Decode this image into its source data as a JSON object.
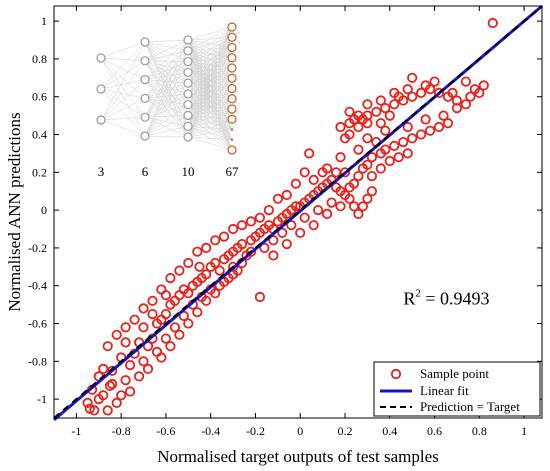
{
  "chart_data": {
    "type": "scatter",
    "xlabel": "Normalised target outputs of test samples",
    "ylabel": "Normalised ANN predictions",
    "xlim": [
      -1.1,
      1.08
    ],
    "ylim": [
      -1.1,
      1.08
    ],
    "xticks": [
      "-1",
      "-0.8",
      "-0.6",
      "-0.4",
      "-0.2",
      "0",
      "0.2",
      "0.4",
      "0.6",
      "0.8",
      "1"
    ],
    "yticks": [
      "-1",
      "-0.8",
      "-0.6",
      "-0.4",
      "-0.2",
      "0",
      "0.2",
      "0.4",
      "0.6",
      "0.8",
      "1"
    ],
    "grid": false,
    "legend_position": "bottom-right",
    "annotation": {
      "r2_base": "R",
      "r2_sup": "2",
      "r2_value": " = 0.9493",
      "r2_at": [
        0.55,
        -0.5
      ]
    },
    "series": [
      {
        "name": "Sample point",
        "kind": "scatter",
        "color": "#e8211b",
        "points": [
          [
            -0.94,
            -1.05
          ],
          [
            -0.92,
            -1.06
          ],
          [
            -0.95,
            -1.02
          ],
          [
            -0.9,
            -1.0
          ],
          [
            -0.88,
            -0.98
          ],
          [
            -0.86,
            -1.06
          ],
          [
            -0.93,
            -0.95
          ],
          [
            -0.85,
            -0.93
          ],
          [
            -0.82,
            -1.02
          ],
          [
            -0.8,
            -0.98
          ],
          [
            -0.84,
            -0.85
          ],
          [
            -0.78,
            -0.9
          ],
          [
            -0.8,
            -0.78
          ],
          [
            -0.76,
            -0.82
          ],
          [
            -0.74,
            -0.76
          ],
          [
            -0.72,
            -0.7
          ],
          [
            -0.78,
            -0.7
          ],
          [
            -0.7,
            -0.8
          ],
          [
            -0.68,
            -0.72
          ],
          [
            -0.66,
            -0.68
          ],
          [
            -0.7,
            -0.62
          ],
          [
            -0.64,
            -0.6
          ],
          [
            -0.62,
            -0.58
          ],
          [
            -0.66,
            -0.55
          ],
          [
            -0.6,
            -0.55
          ],
          [
            -0.58,
            -0.5
          ],
          [
            -0.6,
            -0.45
          ],
          [
            -0.56,
            -0.48
          ],
          [
            -0.54,
            -0.45
          ],
          [
            -0.52,
            -0.42
          ],
          [
            -0.5,
            -0.44
          ],
          [
            -0.48,
            -0.4
          ],
          [
            -0.46,
            -0.38
          ],
          [
            -0.44,
            -0.36
          ],
          [
            -0.42,
            -0.34
          ],
          [
            -0.45,
            -0.3
          ],
          [
            -0.4,
            -0.3
          ],
          [
            -0.38,
            -0.28
          ],
          [
            -0.36,
            -0.32
          ],
          [
            -0.34,
            -0.26
          ],
          [
            -0.32,
            -0.24
          ],
          [
            -0.3,
            -0.22
          ],
          [
            -0.3,
            -0.3
          ],
          [
            -0.28,
            -0.2
          ],
          [
            -0.26,
            -0.18
          ],
          [
            -0.24,
            -0.24
          ],
          [
            -0.22,
            -0.16
          ],
          [
            -0.2,
            -0.14
          ],
          [
            -0.18,
            -0.12
          ],
          [
            -0.16,
            -0.1
          ],
          [
            -0.14,
            -0.08
          ],
          [
            -0.12,
            -0.1
          ],
          [
            -0.1,
            -0.06
          ],
          [
            -0.08,
            -0.04
          ],
          [
            -0.06,
            -0.02
          ],
          [
            -0.04,
            0.0
          ],
          [
            -0.02,
            0.02
          ],
          [
            0.0,
            0.02
          ],
          [
            0.02,
            0.04
          ],
          [
            0.04,
            0.06
          ],
          [
            0.06,
            0.08
          ],
          [
            0.08,
            0.1
          ],
          [
            0.1,
            0.12
          ],
          [
            0.12,
            0.14
          ],
          [
            0.14,
            0.16
          ],
          [
            0.16,
            0.12
          ],
          [
            0.18,
            0.1
          ],
          [
            0.2,
            0.08
          ],
          [
            0.22,
            0.06
          ],
          [
            0.24,
            0.02
          ],
          [
            0.26,
            -0.02
          ],
          [
            0.28,
            0.02
          ],
          [
            0.3,
            0.06
          ],
          [
            0.32,
            0.1
          ],
          [
            0.18,
            0.28
          ],
          [
            0.2,
            0.38
          ],
          [
            0.22,
            0.46
          ],
          [
            0.24,
            0.48
          ],
          [
            0.26,
            0.5
          ],
          [
            0.28,
            0.48
          ],
          [
            0.3,
            0.5
          ],
          [
            0.34,
            0.52
          ],
          [
            0.38,
            0.54
          ],
          [
            0.42,
            0.56
          ],
          [
            0.46,
            0.58
          ],
          [
            0.5,
            0.6
          ],
          [
            0.54,
            0.62
          ],
          [
            0.58,
            0.64
          ],
          [
            0.62,
            0.62
          ],
          [
            0.66,
            0.6
          ],
          [
            0.7,
            0.58
          ],
          [
            0.74,
            0.56
          ],
          [
            0.78,
            0.64
          ],
          [
            0.82,
            0.66
          ],
          [
            0.86,
            0.99
          ],
          [
            0.74,
            0.68
          ],
          [
            0.5,
            0.7
          ],
          [
            0.44,
            0.6
          ],
          [
            0.4,
            0.5
          ],
          [
            0.36,
            0.46
          ],
          [
            0.34,
            0.36
          ],
          [
            0.36,
            0.3
          ],
          [
            0.38,
            0.32
          ],
          [
            0.42,
            0.34
          ],
          [
            0.46,
            0.36
          ],
          [
            0.5,
            0.38
          ],
          [
            0.54,
            0.4
          ],
          [
            0.58,
            0.42
          ],
          [
            0.62,
            0.44
          ],
          [
            0.66,
            0.46
          ],
          [
            0.24,
            0.14
          ],
          [
            0.26,
            0.18
          ],
          [
            0.28,
            0.22
          ],
          [
            0.3,
            0.24
          ],
          [
            0.32,
            0.28
          ],
          [
            0.2,
            0.2
          ],
          [
            0.16,
            0.2
          ],
          [
            0.04,
            0.3
          ],
          [
            0.02,
            0.2
          ],
          [
            0.06,
            0.16
          ],
          [
            0.1,
            0.2
          ],
          [
            0.12,
            0.22
          ],
          [
            -0.02,
            0.14
          ],
          [
            -0.06,
            0.08
          ],
          [
            -0.1,
            0.06
          ],
          [
            -0.14,
            0.0
          ],
          [
            -0.18,
            -0.04
          ],
          [
            -0.22,
            -0.06
          ],
          [
            -0.26,
            -0.08
          ],
          [
            -0.3,
            -0.1
          ],
          [
            -0.34,
            -0.14
          ],
          [
            -0.38,
            -0.16
          ],
          [
            -0.42,
            -0.2
          ],
          [
            -0.46,
            -0.22
          ],
          [
            -0.5,
            -0.28
          ],
          [
            -0.54,
            -0.32
          ],
          [
            -0.58,
            -0.36
          ],
          [
            -0.62,
            -0.42
          ],
          [
            -0.66,
            -0.48
          ],
          [
            -0.7,
            -0.52
          ],
          [
            -0.74,
            -0.58
          ],
          [
            -0.78,
            -0.62
          ],
          [
            -0.82,
            -0.66
          ],
          [
            -0.86,
            -0.72
          ],
          [
            -0.64,
            -0.75
          ],
          [
            -0.6,
            -0.68
          ],
          [
            -0.56,
            -0.62
          ],
          [
            -0.52,
            -0.56
          ],
          [
            -0.48,
            -0.5
          ],
          [
            -0.44,
            -0.46
          ],
          [
            -0.4,
            -0.42
          ],
          [
            -0.36,
            -0.4
          ],
          [
            -0.32,
            -0.36
          ],
          [
            -0.28,
            -0.32
          ],
          [
            -0.18,
            -0.46
          ],
          [
            -0.12,
            -0.24
          ],
          [
            -0.06,
            -0.18
          ],
          [
            0.0,
            -0.12
          ],
          [
            0.06,
            -0.08
          ],
          [
            0.12,
            -0.02
          ],
          [
            0.18,
            0.02
          ],
          [
            0.22,
            0.12
          ],
          [
            0.26,
            0.32
          ],
          [
            0.3,
            0.38
          ],
          [
            0.38,
            0.42
          ],
          [
            0.48,
            0.44
          ],
          [
            0.56,
            0.48
          ],
          [
            0.64,
            0.5
          ],
          [
            0.7,
            0.54
          ],
          [
            0.76,
            0.6
          ],
          [
            0.8,
            0.62
          ],
          [
            0.32,
            0.18
          ],
          [
            0.36,
            0.22
          ],
          [
            0.4,
            0.26
          ],
          [
            0.44,
            0.28
          ],
          [
            0.48,
            0.3
          ],
          [
            -0.72,
            -0.88
          ],
          [
            -0.76,
            -0.96
          ],
          [
            -0.84,
            -0.92
          ],
          [
            -0.88,
            -0.84
          ],
          [
            -0.9,
            -0.88
          ],
          [
            -0.68,
            -0.84
          ],
          [
            -0.62,
            -0.78
          ],
          [
            -0.58,
            -0.72
          ],
          [
            -0.54,
            -0.66
          ],
          [
            -0.5,
            -0.6
          ],
          [
            -0.46,
            -0.54
          ],
          [
            -0.42,
            -0.48
          ],
          [
            -0.38,
            -0.44
          ],
          [
            -0.34,
            -0.38
          ],
          [
            -0.3,
            -0.34
          ],
          [
            -0.26,
            -0.28
          ],
          [
            -0.22,
            -0.22
          ],
          [
            -0.16,
            -0.2
          ],
          [
            -0.12,
            -0.16
          ],
          [
            -0.08,
            -0.12
          ],
          [
            -0.04,
            -0.08
          ],
          [
            0.02,
            -0.04
          ],
          [
            0.08,
            0.0
          ],
          [
            0.14,
            0.04
          ],
          [
            0.22,
            0.4
          ],
          [
            0.26,
            0.44
          ],
          [
            0.3,
            0.46
          ],
          [
            0.18,
            0.44
          ],
          [
            0.22,
            0.52
          ],
          [
            0.3,
            0.56
          ],
          [
            0.36,
            0.58
          ],
          [
            0.42,
            0.62
          ],
          [
            0.48,
            0.64
          ],
          [
            0.56,
            0.66
          ],
          [
            0.6,
            0.68
          ],
          [
            0.68,
            0.62
          ]
        ]
      },
      {
        "name": "Linear fit",
        "kind": "line",
        "color": "#1515c8",
        "endpoints": [
          [
            -1.1,
            -1.11
          ],
          [
            1.08,
            1.08
          ]
        ]
      },
      {
        "name": "Prediction = Target",
        "kind": "line",
        "color": "#000000",
        "dashed": true,
        "endpoints": [
          [
            -1.1,
            -1.1
          ],
          [
            1.08,
            1.08
          ]
        ]
      }
    ],
    "inset": {
      "layers": [
        {
          "label": "3",
          "nodes": 3
        },
        {
          "label": "6",
          "nodes": 6
        },
        {
          "label": "10",
          "nodes": 10
        },
        {
          "label": "67",
          "nodes": 13,
          "ellipsis": true
        }
      ],
      "node_color": "#9a9a9a",
      "output_color": "#c0602a",
      "edge_color": "#cfcfcf"
    }
  }
}
